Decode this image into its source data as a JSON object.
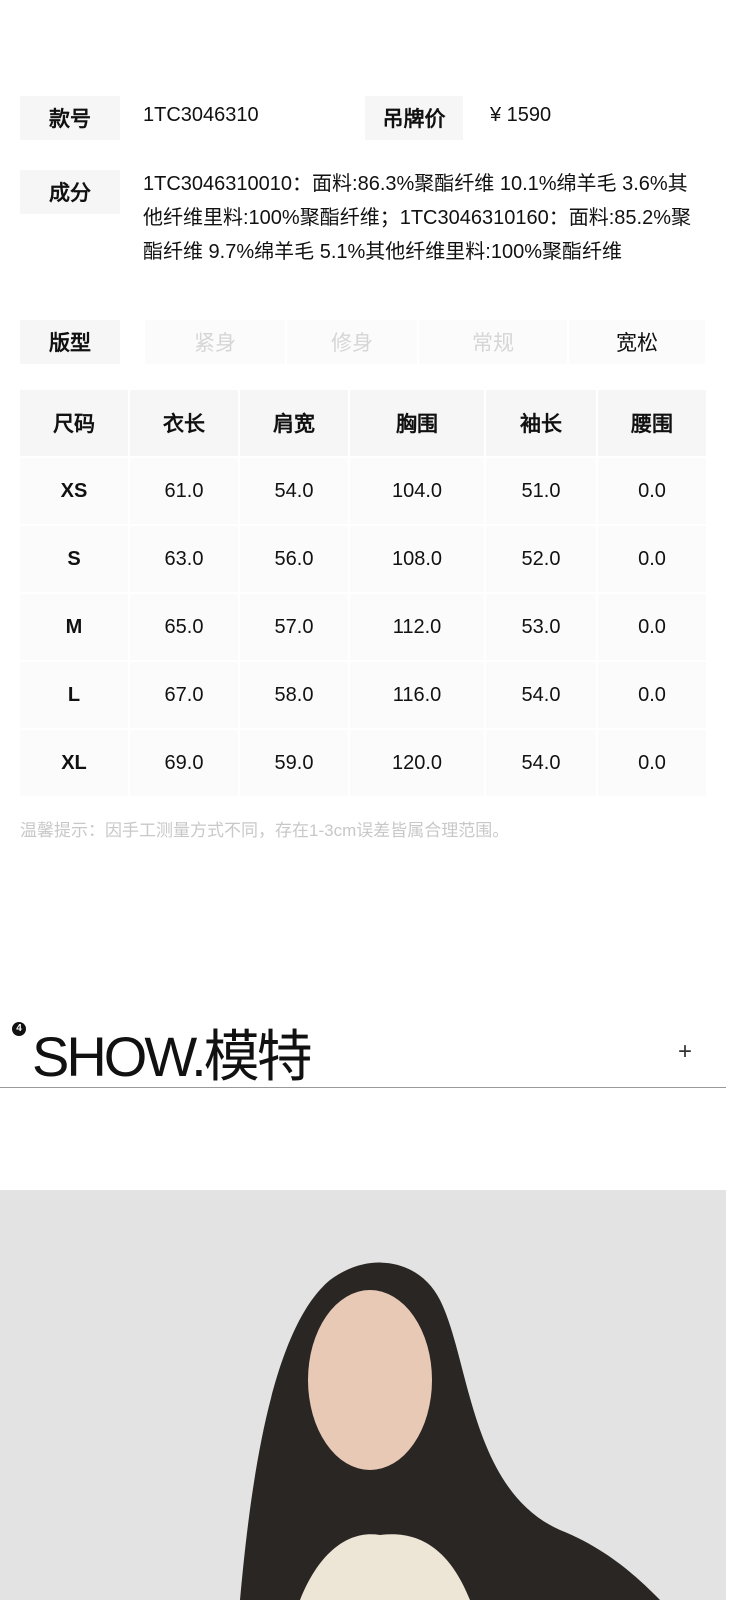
{
  "info": {
    "style_label": "款号",
    "style_value": "1TC3046310",
    "price_label": "吊牌价",
    "price_value": "¥ 1590",
    "composition_label": "成分",
    "composition_value": "1TC3046310010：面料:86.3%聚酯纤维 10.1%绵羊毛 3.6%其他纤维里料:100%聚酯纤维；1TC3046310160：面料:85.2%聚酯纤维 9.7%绵羊毛 5.1%其他纤维里料:100%聚酯纤维",
    "fit_label": "版型",
    "fit_options": [
      "紧身",
      "修身",
      "常规",
      "宽松"
    ],
    "fit_selected": "宽松"
  },
  "size_table": {
    "headers": [
      "尺码",
      "衣长",
      "肩宽",
      "胸围",
      "袖长",
      "腰围"
    ],
    "rows": [
      [
        "XS",
        "61.0",
        "54.0",
        "104.0",
        "51.0",
        "0.0"
      ],
      [
        "S",
        "63.0",
        "56.0",
        "108.0",
        "52.0",
        "0.0"
      ],
      [
        "M",
        "65.0",
        "57.0",
        "112.0",
        "53.0",
        "0.0"
      ],
      [
        "L",
        "67.0",
        "58.0",
        "116.0",
        "54.0",
        "0.0"
      ],
      [
        "XL",
        "69.0",
        "59.0",
        "120.0",
        "54.0",
        "0.0"
      ]
    ]
  },
  "tip": "温馨提示：因手工测量方式不同，存在1-3cm误差皆属合理范围。",
  "show_section": {
    "number": "4",
    "title": "SHOW.模特",
    "expand_icon": "plus-icon"
  }
}
